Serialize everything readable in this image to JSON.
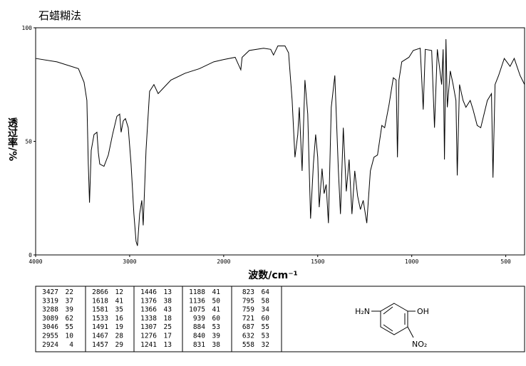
{
  "chart_data": {
    "type": "line",
    "title": "石蜡糊法",
    "xlabel": "波数/cm⁻¹",
    "ylabel": "透过率/%",
    "xlim": [
      4000,
      400
    ],
    "xticks": [
      4000,
      3000,
      2000,
      1500,
      1000,
      500
    ],
    "ylim": [
      0,
      100
    ],
    "yticks": [
      0,
      50,
      100
    ],
    "color": "#000000",
    "x": [
      4000,
      3773,
      3545,
      3485,
      3455,
      3440,
      3427,
      3409,
      3379,
      3348,
      3333,
      3318,
      3273,
      3227,
      3182,
      3136,
      3106,
      3091,
      3068,
      3045,
      3015,
      2985,
      2955,
      2932,
      2917,
      2894,
      2871,
      2856,
      2826,
      2788,
      2742,
      2697,
      2652,
      2561,
      2409,
      2258,
      2106,
      2000,
      1939,
      1909,
      1902,
      1864,
      1788,
      1750,
      1735,
      1712,
      1674,
      1655,
      1636,
      1621,
      1606,
      1598,
      1583,
      1568,
      1553,
      1538,
      1523,
      1511,
      1500,
      1492,
      1477,
      1466,
      1455,
      1443,
      1428,
      1409,
      1390,
      1379,
      1364,
      1348,
      1333,
      1318,
      1303,
      1288,
      1273,
      1258,
      1239,
      1220,
      1201,
      1182,
      1159,
      1144,
      1121,
      1098,
      1083,
      1076,
      1068,
      1053,
      1015,
      992,
      955,
      939,
      928,
      894,
      879,
      864,
      841,
      833,
      826,
      818,
      811,
      795,
      780,
      765,
      758,
      746,
      727,
      712,
      689,
      674,
      652,
      633,
      598,
      576,
      568,
      557,
      538,
      508,
      477,
      455,
      424,
      400
    ],
    "values": [
      86.5,
      85,
      82,
      76,
      68,
      40,
      23,
      46,
      53,
      54,
      45,
      40,
      39,
      44,
      53,
      61,
      62,
      54,
      59,
      60,
      56,
      40,
      18,
      6,
      4,
      18,
      24,
      13,
      46,
      72,
      75,
      71,
      73,
      77,
      80,
      82,
      85,
      86,
      87,
      81.5,
      87,
      90,
      91,
      90.5,
      88,
      92,
      92,
      89,
      68,
      43,
      53,
      65,
      37,
      77,
      62,
      16,
      40,
      53,
      43,
      21,
      38,
      27,
      31,
      14,
      65,
      79,
      37,
      18,
      56,
      28,
      42,
      18,
      37,
      26,
      20,
      24,
      14,
      37,
      43,
      44,
      57,
      56,
      66,
      78,
      77,
      43,
      77,
      85,
      87,
      90,
      91,
      64,
      90.5,
      90,
      56,
      90.5,
      75,
      90.5,
      42,
      95,
      65,
      81,
      75,
      68,
      35,
      75,
      68,
      65,
      68,
      64,
      57,
      56,
      68,
      71,
      34,
      75,
      79,
      86.5,
      83,
      86.5,
      79,
      75
    ]
  },
  "peak_table": {
    "columns": [
      [
        [
          3427,
          22
        ],
        [
          3319,
          37
        ],
        [
          3288,
          39
        ],
        [
          3089,
          62
        ],
        [
          3046,
          55
        ],
        [
          2955,
          10
        ],
        [
          2924,
          4
        ]
      ],
      [
        [
          2866,
          12
        ],
        [
          1618,
          41
        ],
        [
          1581,
          35
        ],
        [
          1533,
          16
        ],
        [
          1491,
          19
        ],
        [
          1467,
          28
        ],
        [
          1457,
          29
        ]
      ],
      [
        [
          1446,
          13
        ],
        [
          1376,
          38
        ],
        [
          1366,
          43
        ],
        [
          1338,
          18
        ],
        [
          1307,
          25
        ],
        [
          1276,
          17
        ],
        [
          1241,
          13
        ]
      ],
      [
        [
          1188,
          41
        ],
        [
          1136,
          50
        ],
        [
          1075,
          41
        ],
        [
          939,
          60
        ],
        [
          884,
          53
        ],
        [
          840,
          39
        ],
        [
          831,
          38
        ]
      ],
      [
        [
          823,
          64
        ],
        [
          795,
          58
        ],
        [
          759,
          34
        ],
        [
          721,
          60
        ],
        [
          687,
          55
        ],
        [
          632,
          53
        ],
        [
          558,
          32
        ]
      ]
    ]
  },
  "structure": {
    "amine": "H₂N",
    "hydroxyl": "OH",
    "nitro": "NO₂"
  }
}
